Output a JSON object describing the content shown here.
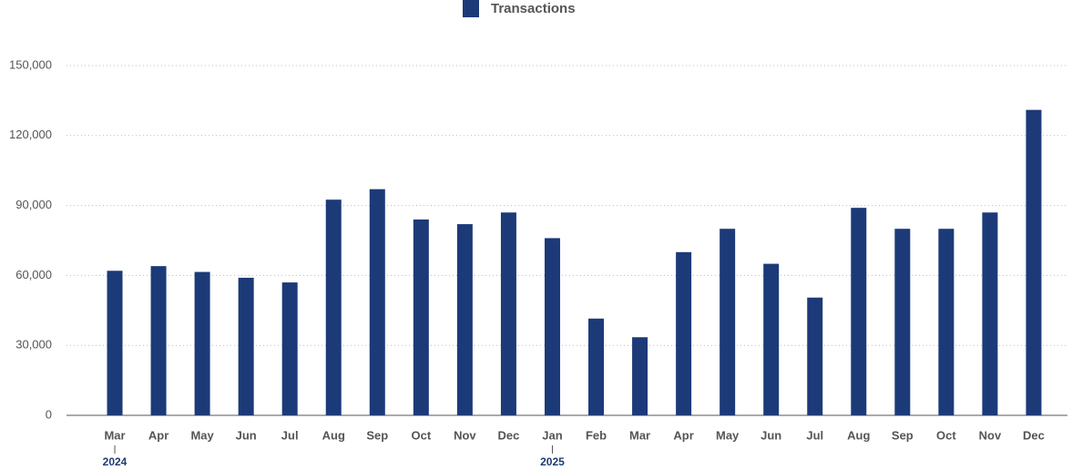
{
  "chart_data": {
    "type": "bar",
    "categories": [
      "Mar",
      "Apr",
      "May",
      "Jun",
      "Jul",
      "Aug",
      "Sep",
      "Oct",
      "Nov",
      "Dec",
      "Jan",
      "Feb",
      "Mar",
      "Apr",
      "May",
      "Jun",
      "Jul",
      "Aug",
      "Sep",
      "Oct",
      "Nov",
      "Dec"
    ],
    "year_labels": [
      "2024",
      null,
      null,
      null,
      null,
      null,
      null,
      null,
      null,
      null,
      "2025",
      null,
      null,
      null,
      null,
      null,
      null,
      null,
      null,
      null,
      null,
      null
    ],
    "series": [
      {
        "name": "Transactions",
        "color": "#1c3a78",
        "values": [
          62000,
          64000,
          61500,
          59000,
          57000,
          92500,
          97000,
          84000,
          82000,
          87000,
          76000,
          41500,
          33500,
          70000,
          80000,
          65000,
          50500,
          89000,
          80000,
          80000,
          87000,
          131000
        ]
      }
    ],
    "ylim": [
      0,
      150000
    ],
    "yticks": [
      0,
      {
        "value": 30000,
        "label": "30,000"
      },
      {
        "value": 60000,
        "label": "60,000"
      },
      {
        "value": 90000,
        "label": "90,000"
      },
      {
        "value": 120000,
        "label": "120,000"
      },
      {
        "value": 150000,
        "label": "150,000"
      }
    ],
    "grid": true
  }
}
